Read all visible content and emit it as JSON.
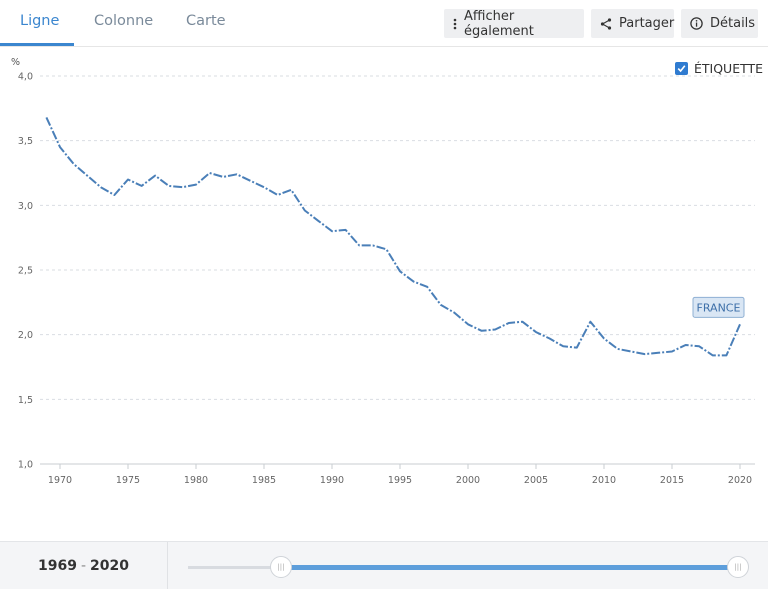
{
  "tabs": [
    {
      "label": "Ligne",
      "active": true
    },
    {
      "label": "Colonne",
      "active": false
    },
    {
      "label": "Carte",
      "active": false
    }
  ],
  "buttons": {
    "show_also": "Afficher également",
    "share": "Partager",
    "details": "Détails"
  },
  "label_toggle": {
    "text": "ÉTIQUETTE",
    "checked": true
  },
  "range": {
    "start": "1969",
    "separator": "-",
    "end": "2020"
  },
  "colors": {
    "accent": "#3b86cf",
    "line": "#4a7fb8"
  },
  "chart_data": {
    "type": "line",
    "ylabel": "%",
    "ylim": [
      1.0,
      4.0
    ],
    "yticks": [
      "4,0",
      "3,5",
      "3,0",
      "2,5",
      "2,0",
      "1,5",
      "1,0"
    ],
    "xlim": [
      1969,
      2020
    ],
    "xticks": [
      "1970",
      "1975",
      "1980",
      "1985",
      "1990",
      "1995",
      "2000",
      "2005",
      "2010",
      "2015",
      "2020"
    ],
    "grid": true,
    "series": [
      {
        "name": "FRANCE",
        "x": [
          1969,
          1970,
          1971,
          1972,
          1973,
          1974,
          1975,
          1976,
          1977,
          1978,
          1979,
          1980,
          1981,
          1982,
          1983,
          1984,
          1985,
          1986,
          1987,
          1988,
          1989,
          1990,
          1991,
          1992,
          1993,
          1994,
          1995,
          1996,
          1997,
          1998,
          1999,
          2000,
          2001,
          2002,
          2003,
          2004,
          2005,
          2006,
          2007,
          2008,
          2009,
          2010,
          2011,
          2012,
          2013,
          2014,
          2015,
          2016,
          2017,
          2018,
          2019,
          2020
        ],
        "values": [
          3.68,
          3.45,
          3.32,
          3.23,
          3.14,
          3.08,
          3.2,
          3.15,
          3.23,
          3.15,
          3.14,
          3.16,
          3.25,
          3.22,
          3.24,
          3.19,
          3.14,
          3.08,
          3.12,
          2.96,
          2.88,
          2.8,
          2.81,
          2.69,
          2.69,
          2.66,
          2.49,
          2.41,
          2.37,
          2.23,
          2.17,
          2.08,
          2.03,
          2.04,
          2.09,
          2.1,
          2.02,
          1.97,
          1.91,
          1.9,
          2.1,
          1.97,
          1.89,
          1.87,
          1.85,
          1.86,
          1.87,
          1.92,
          1.91,
          1.84,
          1.84,
          2.08
        ]
      }
    ]
  }
}
